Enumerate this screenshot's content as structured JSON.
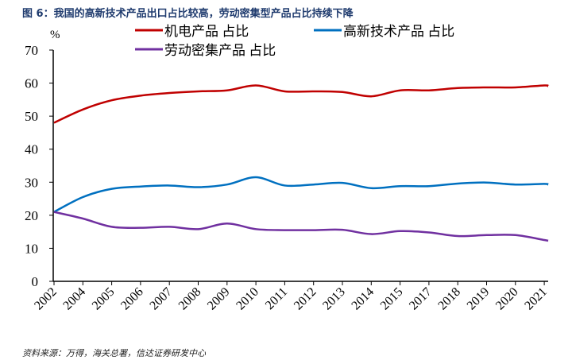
{
  "title": "图 6：我国的高新技术产品出口占比较高，劳动密集型产品占比持续下降",
  "source": "资料来源：万得，海关总署，信达证券研发中心",
  "chart_data": {
    "type": "line",
    "ylabel": "%",
    "ylim": [
      0,
      70
    ],
    "yticks": [
      0,
      10,
      20,
      30,
      40,
      50,
      60,
      70
    ],
    "grid": false,
    "legend": "top",
    "categories": [
      "2002",
      "2004",
      "2005",
      "2006",
      "2007",
      "2008",
      "2009",
      "2010",
      "2011",
      "2012",
      "2013",
      "2014",
      "2015",
      "2017",
      "2018",
      "2019",
      "2020",
      "2021"
    ],
    "series": [
      {
        "name": "机电产品 占比",
        "color": "#c00000",
        "values": [
          48,
          52,
          54.8,
          56.2,
          57,
          57.5,
          57.8,
          59.3,
          57.5,
          57.5,
          57.3,
          56,
          57.8,
          57.8,
          58.5,
          58.7,
          58.7,
          59.3
        ]
      },
      {
        "name": "高新技术产品 占比",
        "color": "#0070c0",
        "values": [
          21,
          25.5,
          28,
          28.7,
          29,
          28.5,
          29.3,
          31.5,
          29,
          29.3,
          29.8,
          28.2,
          28.8,
          28.8,
          29.6,
          29.9,
          29.3,
          29.5
        ]
      },
      {
        "name": "劳动密集产品 占比",
        "color": "#7030a0",
        "values": [
          21,
          19,
          16.5,
          16.2,
          16.5,
          15.8,
          17.5,
          15.8,
          15.5,
          15.5,
          15.6,
          14.3,
          15.2,
          14.8,
          13.7,
          14,
          14,
          12.5
        ]
      }
    ]
  }
}
